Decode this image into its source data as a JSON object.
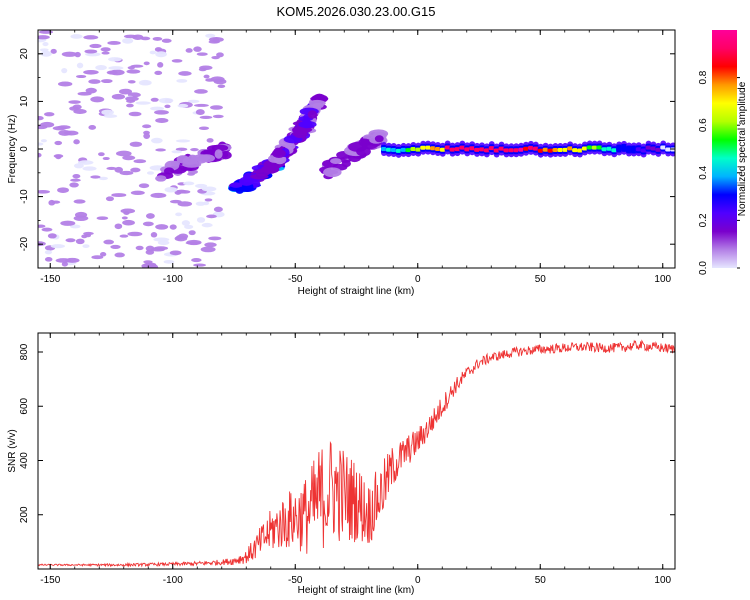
{
  "figure": {
    "title": "KOM5.2026.030.23.00.G15"
  },
  "chart_data": [
    {
      "type": "heatmap",
      "name": "spectrogram",
      "title": "KOM5.2026.030.23.00.G15",
      "xlabel": "Height of straight line (km)",
      "ylabel": "Frequency (Hz)",
      "xlim": [
        -155,
        105
      ],
      "ylim": [
        -25,
        25
      ],
      "xticks": [
        -150,
        -100,
        -50,
        0,
        50,
        100
      ],
      "yticks": [
        -20,
        -10,
        0,
        10,
        20
      ],
      "colorbar": {
        "label": "Normalized spectral amplitude",
        "range": [
          0.0,
          1.0
        ],
        "ticks": [
          0.0,
          0.2,
          0.4,
          0.6,
          0.8
        ],
        "tick_labels": [
          "0.0",
          "0.2",
          "0.4",
          "0.6",
          "0.8"
        ],
        "colormap": [
          "#e6e6ff",
          "#b37fe6",
          "#7a00cc",
          "#5000ff",
          "#0000ff",
          "#00b4ff",
          "#00ffc8",
          "#00ff00",
          "#b4ff00",
          "#ffff00",
          "#ff9900",
          "#ff0000",
          "#ff0066",
          "#ff0099"
        ]
      },
      "features": [
        {
          "label": "scattered noise",
          "x_range": [
            -155,
            -80
          ],
          "y_range": [
            -25,
            25
          ],
          "amplitude": 0.05
        },
        {
          "label": "streak",
          "x_range": [
            -105,
            -78
          ],
          "y_range": [
            -5,
            0
          ],
          "amplitude": 0.12
        },
        {
          "label": "streak",
          "x_range": [
            -75,
            -55
          ],
          "y_range": [
            -9,
            -2
          ],
          "amplitude": 0.25
        },
        {
          "label": "streak",
          "x_range": [
            -65,
            -45
          ],
          "y_range": [
            -6,
            5
          ],
          "amplitude": 0.14
        },
        {
          "label": "streak",
          "x_range": [
            -48,
            -40
          ],
          "y_range": [
            4,
            10
          ],
          "amplitude": 0.15
        },
        {
          "label": "streak",
          "x_range": [
            -38,
            -15
          ],
          "y_range": [
            -5,
            3
          ],
          "amplitude": 0.12
        },
        {
          "label": "main line",
          "x_range": [
            -15,
            105
          ],
          "y_range": [
            -1,
            1
          ],
          "amplitude": 0.95
        }
      ]
    },
    {
      "type": "line",
      "name": "snr",
      "xlabel": "Height of straight line (km)",
      "ylabel": "SNR (v/v)",
      "xlim": [
        -155,
        105
      ],
      "ylim": [
        0,
        870
      ],
      "xticks": [
        -150,
        -100,
        -50,
        0,
        50,
        100
      ],
      "yticks": [
        200,
        400,
        600,
        800
      ],
      "color": "#ee3333",
      "series": [
        {
          "name": "SNR",
          "x": [
            -155,
            -140,
            -120,
            -100,
            -90,
            -80,
            -75,
            -70,
            -65,
            -60,
            -55,
            -50,
            -45,
            -40,
            -35,
            -30,
            -25,
            -20,
            -15,
            -10,
            -5,
            0,
            5,
            10,
            15,
            20,
            25,
            30,
            35,
            40,
            45,
            50,
            55,
            60,
            65,
            70,
            75,
            80,
            85,
            90,
            95,
            100,
            105
          ],
          "y": [
            15,
            15,
            15,
            18,
            20,
            25,
            30,
            45,
            90,
            140,
            170,
            190,
            200,
            260,
            300,
            270,
            250,
            200,
            280,
            380,
            430,
            470,
            530,
            600,
            670,
            720,
            760,
            780,
            790,
            800,
            805,
            810,
            812,
            815,
            818,
            818,
            815,
            815,
            818,
            825,
            820,
            815,
            810
          ],
          "noise": [
            3,
            3,
            5,
            6,
            8,
            10,
            15,
            25,
            55,
            80,
            100,
            120,
            150,
            200,
            200,
            180,
            150,
            120,
            110,
            80,
            60,
            50,
            45,
            40,
            30,
            25,
            20,
            18,
            18,
            18,
            18,
            18,
            18,
            18,
            18,
            18,
            18,
            18,
            18,
            18,
            18,
            18,
            18
          ]
        }
      ]
    }
  ]
}
